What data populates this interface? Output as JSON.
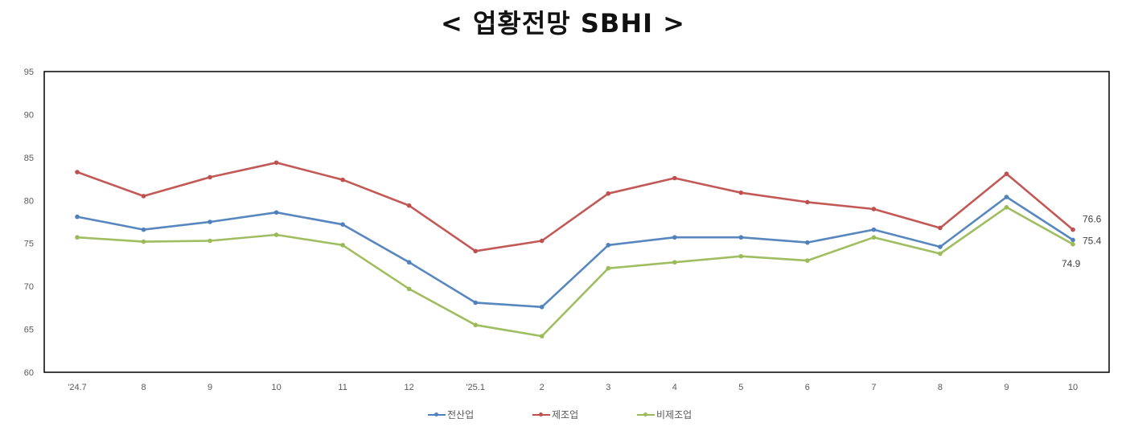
{
  "title": "< 업황전망 SBHI >",
  "chart_data": {
    "type": "line",
    "title": "< 업황전망 SBHI >",
    "xlabel": "",
    "ylabel": "",
    "ylim": [
      60,
      95
    ],
    "yticks": [
      60,
      65,
      70,
      75,
      80,
      85,
      90,
      95
    ],
    "grid": false,
    "legend_position": "bottom",
    "categories": [
      "'24.7",
      "8",
      "9",
      "10",
      "11",
      "12",
      "'25.1",
      "2",
      "3",
      "4",
      "5",
      "6",
      "7",
      "8",
      "9",
      "10"
    ],
    "series": [
      {
        "name": "전산업",
        "color": "#4F81BD",
        "values": [
          78.1,
          76.6,
          77.5,
          78.6,
          77.2,
          72.8,
          68.1,
          67.6,
          74.8,
          75.7,
          75.7,
          75.1,
          76.6,
          74.6,
          80.4,
          75.4
        ]
      },
      {
        "name": "제조업",
        "color": "#C0504D",
        "values": [
          83.3,
          80.5,
          82.7,
          84.4,
          82.4,
          79.4,
          74.1,
          75.3,
          80.8,
          82.6,
          80.9,
          79.8,
          79.0,
          76.8,
          83.1,
          76.6
        ]
      },
      {
        "name": "비제조업",
        "color": "#9BBB59",
        "values": [
          75.7,
          75.2,
          75.3,
          76.0,
          74.8,
          69.7,
          65.5,
          64.2,
          72.1,
          72.8,
          73.5,
          73.0,
          75.7,
          73.8,
          79.2,
          74.9
        ]
      }
    ],
    "annotations": [
      {
        "series": "제조업",
        "x": "10",
        "text": "76.6"
      },
      {
        "series": "전산업",
        "x": "10",
        "text": "75.4"
      },
      {
        "series": "비제조업",
        "x": "10",
        "text": "74.9"
      }
    ]
  },
  "legend": {
    "items": [
      {
        "label": "전산업",
        "color": "#4F81BD"
      },
      {
        "label": "제조업",
        "color": "#C0504D"
      },
      {
        "label": "비제조업",
        "color": "#9BBB59"
      }
    ]
  }
}
